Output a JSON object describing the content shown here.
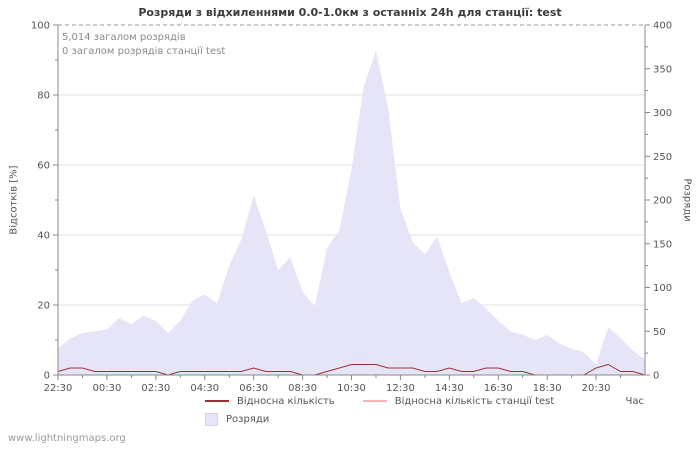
{
  "footer": {
    "watermark": "www.lightningmaps.org"
  },
  "chart_data": {
    "type": "area",
    "title": "Розряди з відхиленнями 0.0-1.0км з останніх 24h для станції: test",
    "xlabel": "Час",
    "ylabel_left": "Відсотків  [%]",
    "ylabel_right": "Розряди",
    "ylim_left": [
      0,
      100
    ],
    "ylim_right": [
      0,
      400
    ],
    "grid": "horizontal",
    "legend_position": "bottom",
    "annotations": [
      "5,014 загалом розрядів",
      "0 загалом розрядів станції test"
    ],
    "x_ticks": [
      "22:30",
      "00:30",
      "02:30",
      "04:30",
      "06:30",
      "08:30",
      "10:30",
      "12:30",
      "14:30",
      "16:30",
      "18:30",
      "20:30"
    ],
    "series": [
      {
        "name": "Розряди",
        "type": "area",
        "axis": "right",
        "color": "#e6e4f7",
        "values": [
          30,
          42,
          48,
          50,
          52,
          65,
          58,
          68,
          62,
          48,
          62,
          85,
          92,
          82,
          125,
          155,
          205,
          165,
          120,
          135,
          95,
          78,
          145,
          165,
          235,
          330,
          370,
          305,
          190,
          152,
          138,
          158,
          118,
          82,
          88,
          76,
          62,
          50,
          46,
          40,
          46,
          36,
          30,
          26,
          12,
          55,
          42,
          28,
          18
        ]
      },
      {
        "name": "Відносна кількість",
        "type": "line",
        "axis": "left",
        "color": "#993333",
        "values": [
          1,
          2,
          2,
          1,
          1,
          1,
          1,
          1,
          1,
          0,
          1,
          1,
          1,
          1,
          1,
          1,
          2,
          1,
          1,
          1,
          0,
          0,
          1,
          2,
          3,
          3,
          3,
          2,
          2,
          2,
          1,
          1,
          2,
          1,
          1,
          2,
          2,
          1,
          1,
          0,
          0,
          0,
          0,
          0,
          2,
          3,
          1,
          1,
          0
        ]
      },
      {
        "name": "Відносна кількість станції test",
        "type": "line",
        "axis": "left",
        "color": "#f2b6b6",
        "values": [
          0,
          0,
          0,
          0,
          0,
          0,
          0,
          0,
          0,
          0,
          0,
          0,
          0,
          0,
          0,
          0,
          0,
          0,
          0,
          0,
          0,
          0,
          0,
          0,
          0,
          0,
          0,
          0,
          0,
          0,
          0,
          0,
          0,
          0,
          0,
          0,
          0,
          0,
          0,
          0,
          0,
          0,
          0,
          0,
          0,
          0,
          0,
          0,
          0
        ]
      }
    ]
  }
}
